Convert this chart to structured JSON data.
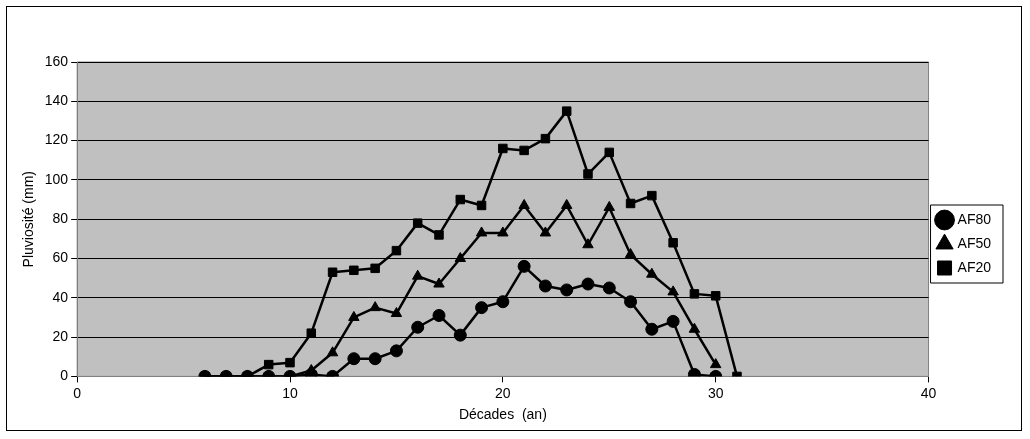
{
  "chart_data": {
    "type": "line",
    "xlabel": "Décades  (an)",
    "ylabel": "Pluviosité (mm)",
    "x": [
      6,
      7,
      8,
      9,
      10,
      11,
      12,
      13,
      14,
      15,
      16,
      17,
      18,
      19,
      20,
      21,
      22,
      23,
      24,
      25,
      26,
      27,
      28,
      29,
      30,
      31
    ],
    "series": [
      {
        "name": "AF80",
        "color": "#000000",
        "marker": "circle",
        "values": [
          0,
          0,
          0,
          0,
          0,
          1,
          0,
          9,
          9,
          13,
          25,
          31,
          21,
          35,
          38,
          56,
          46,
          44,
          47,
          45,
          38,
          24,
          28,
          1,
          0,
          null
        ]
      },
      {
        "name": "AF50",
        "color": "#000000",
        "marker": "triangle",
        "values": [
          0,
          0,
          0,
          0,
          0,
          3,
          12,
          30,
          35,
          32,
          51,
          47,
          60,
          73,
          73,
          87,
          73,
          87,
          67,
          86,
          62,
          52,
          43,
          24,
          6,
          null
        ]
      },
      {
        "name": "AF20",
        "color": "#000000",
        "marker": "square",
        "values": [
          0,
          0,
          0,
          6,
          7,
          22,
          53,
          54,
          55,
          64,
          78,
          72,
          90,
          87,
          116,
          115,
          121,
          135,
          103,
          114,
          88,
          92,
          68,
          42,
          41,
          0
        ]
      }
    ],
    "xlim": [
      0,
      40
    ],
    "xticks": [
      0,
      10,
      20,
      30,
      40
    ],
    "ylim": [
      0,
      160
    ],
    "yticks": [
      0,
      20,
      40,
      60,
      80,
      100,
      120,
      140,
      160
    ],
    "grid": "y",
    "legend": "right",
    "line_style": "solid"
  }
}
